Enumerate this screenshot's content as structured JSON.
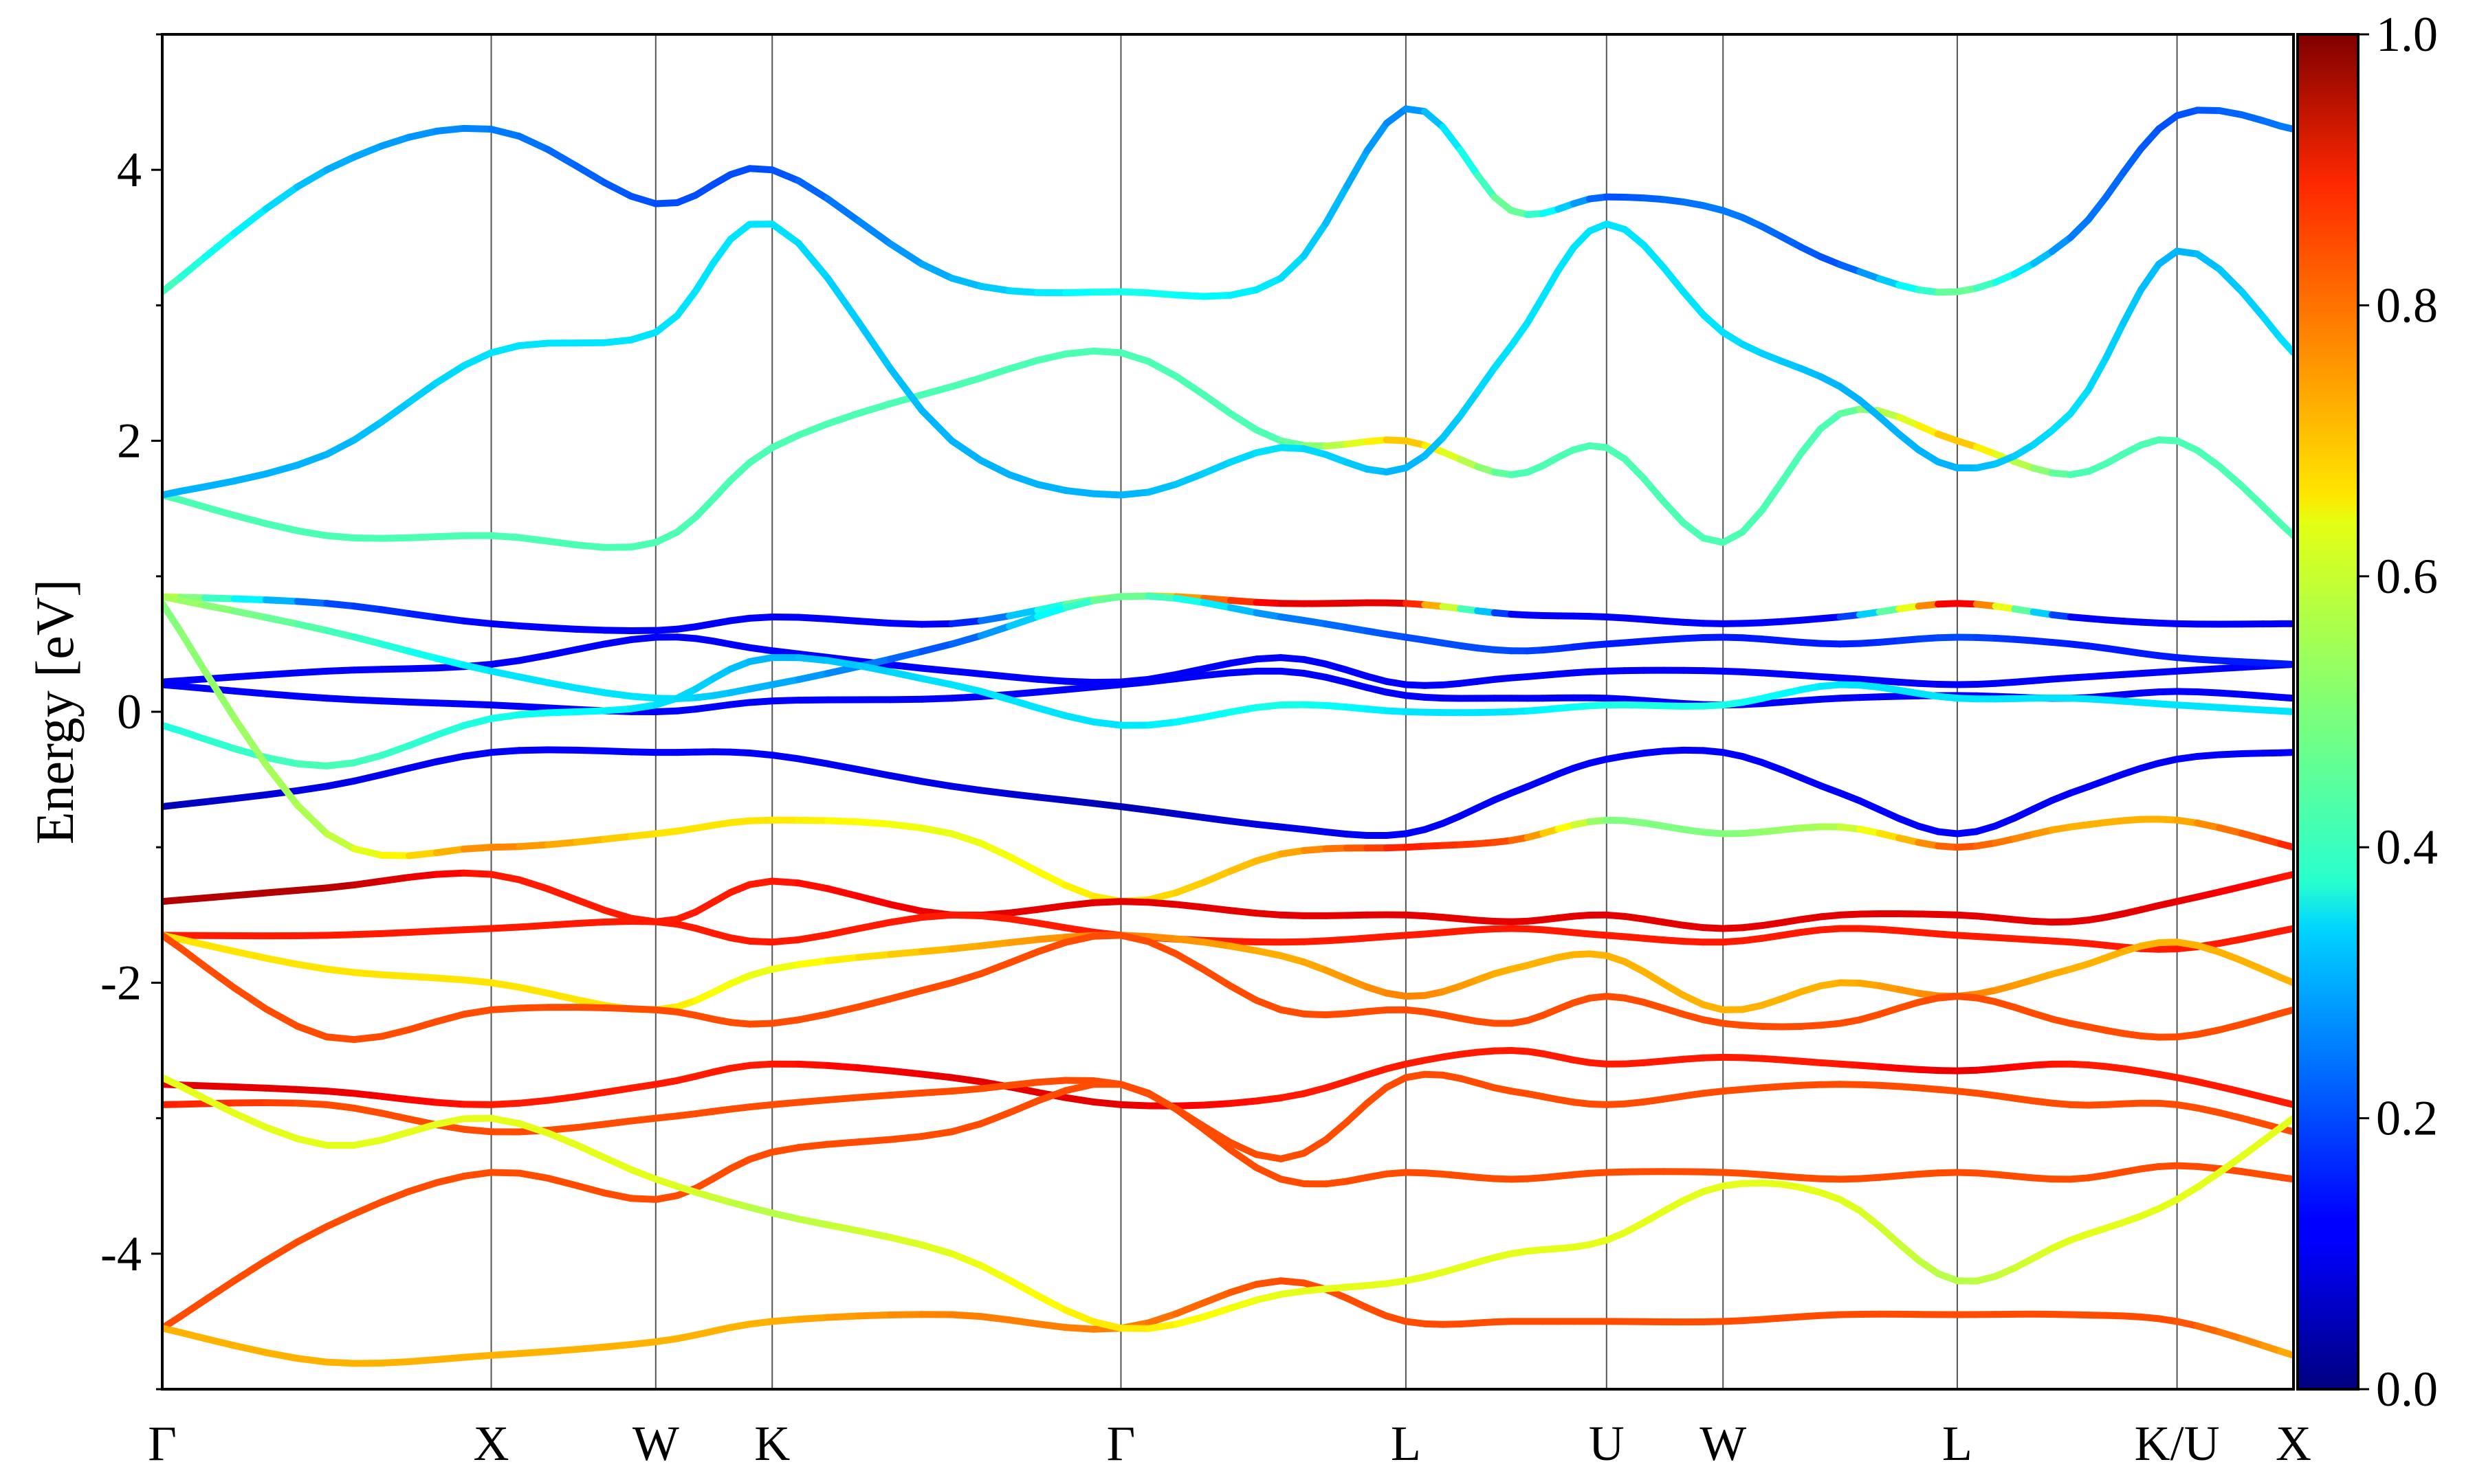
{
  "chart_data": {
    "type": "line",
    "ylabel": "Energy [eV]",
    "ylim": [
      -5,
      5
    ],
    "y_ticks": [
      -4,
      -2,
      0,
      2,
      4
    ],
    "y_tick_labels": [
      "-4",
      "-2",
      "0",
      "2",
      "4"
    ],
    "k_labels": [
      "Γ",
      "X",
      "W",
      "K",
      "Γ",
      "L",
      "U",
      "W",
      "L",
      "K/U",
      "X"
    ],
    "k_positions": [
      0.0,
      1.0,
      1.5,
      1.854,
      2.914,
      3.78,
      4.39,
      4.744,
      5.456,
      6.124,
      6.478
    ],
    "colorbar": {
      "colormap": "jet",
      "range": [
        0.0,
        1.0
      ],
      "ticks": [
        0.0,
        0.2,
        0.4,
        0.6,
        0.8,
        1.0
      ],
      "tick_labels": [
        "0.0",
        "0.2",
        "0.4",
        "0.6",
        "0.8",
        "1.0"
      ]
    },
    "grid": "vertical lines at high-symmetry points",
    "series": [
      {
        "x": [
          0,
          0.5,
          1.0,
          1.5,
          1.854,
          2.4,
          2.914,
          3.4,
          3.78,
          4.1,
          4.39,
          4.744,
          5.1,
          5.456,
          5.8,
          6.124,
          6.478
        ],
        "values": [
          -0.7,
          -0.55,
          -0.3,
          -0.3,
          -0.32,
          -0.55,
          -0.7,
          -0.85,
          -0.9,
          -0.6,
          -0.35,
          -0.3,
          -0.6,
          -0.9,
          -0.6,
          -0.35,
          -0.3
        ],
        "weights": [
          0.05,
          0.1,
          0.12,
          0.12,
          0.12,
          0.1,
          0.05,
          0.1,
          0.12,
          0.12,
          0.12,
          0.12,
          0.12,
          0.12,
          0.12,
          0.12,
          0.12
        ]
      },
      {
        "x": [
          0,
          0.5,
          1.0,
          1.5,
          1.854,
          2.4,
          2.914,
          3.4,
          3.78,
          4.1,
          4.39,
          4.744,
          5.1,
          5.456,
          5.8,
          6.124,
          6.478
        ],
        "values": [
          0.2,
          0.1,
          0.05,
          0.0,
          0.08,
          0.1,
          0.2,
          0.3,
          0.12,
          0.1,
          0.1,
          0.05,
          0.1,
          0.12,
          0.1,
          0.15,
          0.1
        ],
        "weights": [
          0.12,
          0.12,
          0.12,
          0.12,
          0.12,
          0.12,
          0.12,
          0.12,
          0.12,
          0.12,
          0.12,
          0.12,
          0.12,
          0.12,
          0.12,
          0.12,
          0.12
        ]
      },
      {
        "x": [
          0,
          0.5,
          1.0,
          1.5,
          1.854,
          2.4,
          2.914,
          3.4,
          3.78,
          4.1,
          4.39,
          4.744,
          5.1,
          5.456,
          5.8,
          6.124,
          6.478
        ],
        "values": [
          0.22,
          0.3,
          0.35,
          0.55,
          0.45,
          0.3,
          0.22,
          0.4,
          0.2,
          0.25,
          0.3,
          0.3,
          0.25,
          0.2,
          0.25,
          0.3,
          0.35
        ],
        "weights": [
          0.12,
          0.12,
          0.12,
          0.12,
          0.12,
          0.12,
          0.12,
          0.12,
          0.12,
          0.12,
          0.12,
          0.12,
          0.12,
          0.12,
          0.12,
          0.12,
          0.12
        ]
      },
      {
        "x": [
          0,
          0.5,
          1.0,
          1.5,
          1.854,
          2.4,
          2.914,
          3.4,
          3.78,
          4.1,
          4.39,
          4.744,
          5.1,
          5.456,
          5.8,
          6.124,
          6.478
        ],
        "values": [
          0.85,
          0.8,
          0.65,
          0.6,
          0.7,
          0.65,
          0.85,
          0.8,
          0.8,
          0.72,
          0.7,
          0.65,
          0.7,
          0.8,
          0.7,
          0.65,
          0.65
        ],
        "weights": [
          0.6,
          0.2,
          0.12,
          0.12,
          0.12,
          0.12,
          0.6,
          0.9,
          0.9,
          0.12,
          0.12,
          0.12,
          0.12,
          0.95,
          0.12,
          0.12,
          0.12
        ]
      },
      {
        "x": [
          0,
          0.5,
          1.0,
          1.5,
          1.854,
          2.4,
          2.914,
          3.4,
          3.78,
          4.1,
          4.39,
          4.744,
          5.1,
          5.456,
          5.8,
          6.124,
          6.478
        ],
        "values": [
          0.85,
          0.6,
          0.3,
          0.1,
          0.2,
          0.5,
          0.85,
          0.7,
          0.55,
          0.45,
          0.5,
          0.55,
          0.5,
          0.55,
          0.5,
          0.4,
          0.35
        ],
        "weights": [
          0.55,
          0.45,
          0.35,
          0.35,
          0.3,
          0.2,
          0.5,
          0.25,
          0.2,
          0.2,
          0.15,
          0.15,
          0.15,
          0.2,
          0.15,
          0.15,
          0.15
        ]
      },
      {
        "x": [
          0,
          0.5,
          1.0,
          1.5,
          1.854,
          2.4,
          2.914,
          3.4,
          3.78,
          4.1,
          4.39,
          4.744,
          5.1,
          5.456,
          5.8,
          6.124,
          6.478
        ],
        "values": [
          -0.1,
          -0.4,
          -0.05,
          0.05,
          0.4,
          0.2,
          -0.1,
          0.05,
          0.0,
          0.0,
          0.05,
          0.05,
          0.2,
          0.1,
          0.1,
          0.05,
          0.0
        ],
        "weights": [
          0.4,
          0.45,
          0.4,
          0.35,
          0.3,
          0.35,
          0.35,
          0.4,
          0.35,
          0.35,
          0.4,
          0.4,
          0.35,
          0.35,
          0.35,
          0.35,
          0.35
        ]
      },
      {
        "x": [
          0,
          0.5,
          1.0,
          1.5,
          1.854,
          2.4,
          2.914,
          3.4,
          3.78,
          4.1,
          4.39,
          4.744,
          5.1,
          5.456,
          5.8,
          6.124,
          6.478
        ],
        "values": [
          1.6,
          1.3,
          1.3,
          1.25,
          1.95,
          2.4,
          2.65,
          2.0,
          2.0,
          1.75,
          1.95,
          1.25,
          2.2,
          2.0,
          1.75,
          2.0,
          1.3
        ],
        "weights": [
          0.45,
          0.45,
          0.45,
          0.45,
          0.45,
          0.45,
          0.45,
          0.45,
          0.7,
          0.45,
          0.45,
          0.45,
          0.45,
          0.7,
          0.45,
          0.45,
          0.45
        ]
      },
      {
        "x": [
          0,
          0.5,
          1.0,
          1.5,
          1.854,
          2.4,
          2.914,
          3.4,
          3.78,
          4.1,
          4.39,
          4.744,
          5.1,
          5.456,
          5.8,
          6.124,
          6.478
        ],
        "values": [
          1.6,
          1.9,
          2.65,
          2.8,
          3.6,
          2.0,
          1.6,
          1.95,
          1.8,
          2.7,
          3.6,
          2.8,
          2.4,
          1.8,
          2.2,
          3.4,
          2.65
        ],
        "weights": [
          0.3,
          0.3,
          0.35,
          0.35,
          0.35,
          0.3,
          0.3,
          0.35,
          0.3,
          0.35,
          0.35,
          0.35,
          0.3,
          0.3,
          0.35,
          0.3,
          0.35
        ],
        "seg": [
          2,
          4,
          6,
          8
        ]
      },
      {
        "x": [
          0,
          0.5,
          1.0,
          1.5,
          1.854,
          2.4,
          2.914,
          3.4,
          3.78,
          4.1,
          4.39,
          4.744,
          5.1,
          5.456,
          5.8,
          6.124,
          6.478
        ],
        "values": [
          3.1,
          4.0,
          4.3,
          3.75,
          4.0,
          3.2,
          3.1,
          3.2,
          4.45,
          3.7,
          3.8,
          3.7,
          3.3,
          3.1,
          3.5,
          4.4,
          4.3
        ],
        "weights": [
          0.45,
          0.3,
          0.25,
          0.2,
          0.2,
          0.3,
          0.4,
          0.35,
          0.25,
          0.5,
          0.2,
          0.25,
          0.2,
          0.5,
          0.25,
          0.2,
          0.25
        ]
      },
      {
        "x": [
          0,
          0.5,
          1.0,
          1.5,
          1.854,
          2.4,
          2.914,
          3.4,
          3.78,
          4.1,
          4.39,
          4.744,
          5.1,
          5.456,
          5.8,
          6.124,
          6.478
        ],
        "values": [
          0.8,
          -0.9,
          -1.0,
          -0.9,
          -0.8,
          -0.9,
          -1.4,
          -1.05,
          -1.0,
          -0.95,
          -0.8,
          -0.9,
          -0.85,
          -1.0,
          -0.85,
          -0.8,
          -1.0
        ],
        "weights": [
          0.5,
          0.55,
          0.75,
          0.65,
          0.65,
          0.6,
          0.65,
          0.7,
          0.85,
          0.8,
          0.5,
          0.5,
          0.55,
          0.8,
          0.7,
          0.7,
          0.85
        ]
      },
      {
        "x": [
          0,
          0.5,
          1.0,
          1.5,
          1.854,
          2.4,
          2.914,
          3.4,
          3.78,
          4.1,
          4.39,
          4.744,
          5.1,
          5.456,
          5.8,
          6.124,
          6.478
        ],
        "values": [
          -1.4,
          -1.3,
          -1.2,
          -1.55,
          -1.25,
          -1.5,
          -1.4,
          -1.5,
          -1.5,
          -1.55,
          -1.5,
          -1.6,
          -1.5,
          -1.5,
          -1.55,
          -1.4,
          -1.2
        ],
        "weights": [
          0.95,
          0.95,
          0.85,
          0.85,
          0.85,
          0.9,
          0.9,
          0.9,
          0.9,
          0.9,
          0.9,
          0.9,
          0.9,
          0.9,
          0.9,
          0.9,
          0.85
        ]
      },
      {
        "x": [
          0,
          0.5,
          1.0,
          1.5,
          1.854,
          2.4,
          2.914,
          3.4,
          3.78,
          4.1,
          4.39,
          4.744,
          5.1,
          5.456,
          5.8,
          6.124,
          6.478
        ],
        "values": [
          -1.65,
          -1.65,
          -1.6,
          -1.55,
          -1.7,
          -1.5,
          -1.65,
          -1.7,
          -1.65,
          -1.6,
          -1.65,
          -1.7,
          -1.6,
          -1.65,
          -1.7,
          -1.75,
          -1.6
        ],
        "weights": [
          0.85,
          0.85,
          0.85,
          0.85,
          0.85,
          0.85,
          0.85,
          0.85,
          0.85,
          0.85,
          0.85,
          0.85,
          0.85,
          0.85,
          0.85,
          0.85,
          0.85
        ]
      },
      {
        "x": [
          0,
          0.5,
          1.0,
          1.5,
          1.854,
          2.4,
          2.914,
          3.4,
          3.78,
          4.1,
          4.39,
          4.744,
          5.1,
          5.456,
          5.8,
          6.124,
          6.478
        ],
        "values": [
          -1.65,
          -1.9,
          -2.0,
          -2.2,
          -1.9,
          -1.75,
          -1.65,
          -1.8,
          -2.1,
          -1.9,
          -1.8,
          -2.2,
          -2.0,
          -2.1,
          -1.9,
          -1.7,
          -2.0
        ],
        "weights": [
          0.65,
          0.65,
          0.65,
          0.65,
          0.6,
          0.7,
          0.75,
          0.7,
          0.75,
          0.7,
          0.7,
          0.7,
          0.7,
          0.75,
          0.7,
          0.7,
          0.7
        ]
      },
      {
        "x": [
          0,
          0.5,
          1.0,
          1.5,
          1.854,
          2.4,
          2.914,
          3.4,
          3.78,
          4.1,
          4.39,
          4.744,
          5.1,
          5.456,
          5.8,
          6.124,
          6.478
        ],
        "values": [
          -1.65,
          -2.4,
          -2.2,
          -2.2,
          -2.3,
          -2.0,
          -1.65,
          -2.2,
          -2.2,
          -2.3,
          -2.1,
          -2.3,
          -2.3,
          -2.1,
          -2.3,
          -2.4,
          -2.2
        ],
        "weights": [
          0.8,
          0.8,
          0.8,
          0.8,
          0.8,
          0.8,
          0.8,
          0.8,
          0.8,
          0.8,
          0.8,
          0.8,
          0.8,
          0.8,
          0.8,
          0.8,
          0.8
        ]
      },
      {
        "x": [
          0,
          0.5,
          1.0,
          1.5,
          1.854,
          2.4,
          2.914,
          3.4,
          3.78,
          4.1,
          4.39,
          4.744,
          5.1,
          5.456,
          5.8,
          6.124,
          6.478
        ],
        "values": [
          -2.75,
          -2.8,
          -2.9,
          -2.75,
          -2.6,
          -2.7,
          -2.9,
          -2.85,
          -2.6,
          -2.5,
          -2.6,
          -2.55,
          -2.6,
          -2.65,
          -2.6,
          -2.7,
          -2.9
        ],
        "weights": [
          0.9,
          0.9,
          0.85,
          0.85,
          0.85,
          0.9,
          0.9,
          0.85,
          0.85,
          0.85,
          0.85,
          0.85,
          0.85,
          0.9,
          0.85,
          0.85,
          0.85
        ]
      },
      {
        "x": [
          0,
          0.5,
          1.0,
          1.5,
          1.854,
          2.4,
          2.914,
          3.4,
          3.78,
          4.1,
          4.39,
          4.744,
          5.1,
          5.456,
          5.8,
          6.124,
          6.478
        ],
        "values": [
          -2.9,
          -2.9,
          -3.1,
          -3.0,
          -2.9,
          -2.8,
          -2.75,
          -3.3,
          -2.7,
          -2.8,
          -2.9,
          -2.8,
          -2.75,
          -2.8,
          -2.9,
          -2.9,
          -3.1
        ],
        "weights": [
          0.85,
          0.8,
          0.8,
          0.8,
          0.8,
          0.8,
          0.8,
          0.8,
          0.8,
          0.8,
          0.8,
          0.8,
          0.8,
          0.8,
          0.8,
          0.8,
          0.8
        ]
      },
      {
        "x": [
          0,
          0.5,
          1.0,
          1.5,
          1.854,
          2.4,
          2.914,
          3.4,
          3.78,
          4.1,
          4.39,
          4.744,
          5.1,
          5.456,
          5.8,
          6.124,
          6.478
        ],
        "values": [
          -4.55,
          -3.8,
          -3.4,
          -3.6,
          -3.25,
          -3.1,
          -2.75,
          -3.45,
          -3.4,
          -3.45,
          -3.4,
          -3.4,
          -3.45,
          -3.4,
          -3.45,
          -3.35,
          -3.45
        ],
        "weights": [
          0.8,
          0.8,
          0.8,
          0.8,
          0.8,
          0.8,
          0.8,
          0.8,
          0.8,
          0.8,
          0.8,
          0.8,
          0.8,
          0.8,
          0.8,
          0.8,
          0.8
        ]
      },
      {
        "x": [
          0,
          0.5,
          1.0,
          1.5,
          1.854,
          2.4,
          2.914,
          3.4,
          3.78,
          4.1,
          4.39,
          4.744,
          5.1,
          5.456,
          5.8,
          6.124,
          6.478
        ],
        "values": [
          -4.55,
          -4.8,
          -4.75,
          -4.65,
          -4.5,
          -4.45,
          -4.55,
          -4.2,
          -4.5,
          -4.5,
          -4.5,
          -4.5,
          -4.45,
          -4.45,
          -4.45,
          -4.5,
          -4.75
        ],
        "weights": [
          0.7,
          0.7,
          0.7,
          0.7,
          0.7,
          0.75,
          0.75,
          0.8,
          0.8,
          0.8,
          0.8,
          0.8,
          0.8,
          0.8,
          0.8,
          0.8,
          0.7
        ]
      },
      {
        "x": [
          0,
          0.5,
          1.0,
          1.5,
          1.854,
          2.4,
          2.914,
          3.4,
          3.78,
          4.1,
          4.39,
          4.744,
          5.1,
          5.456,
          5.8,
          6.124,
          6.478
        ],
        "values": [
          -2.7,
          -3.2,
          -3.0,
          -3.45,
          -3.7,
          -4.0,
          -4.55,
          -4.3,
          -4.2,
          -4.0,
          -3.9,
          -3.5,
          -3.6,
          -4.2,
          -3.9,
          -3.6,
          -3.0
        ],
        "weights": [
          0.6,
          0.6,
          0.6,
          0.6,
          0.55,
          0.6,
          0.65,
          0.6,
          0.6,
          0.6,
          0.6,
          0.6,
          0.6,
          0.55,
          0.6,
          0.6,
          0.6
        ]
      }
    ]
  }
}
